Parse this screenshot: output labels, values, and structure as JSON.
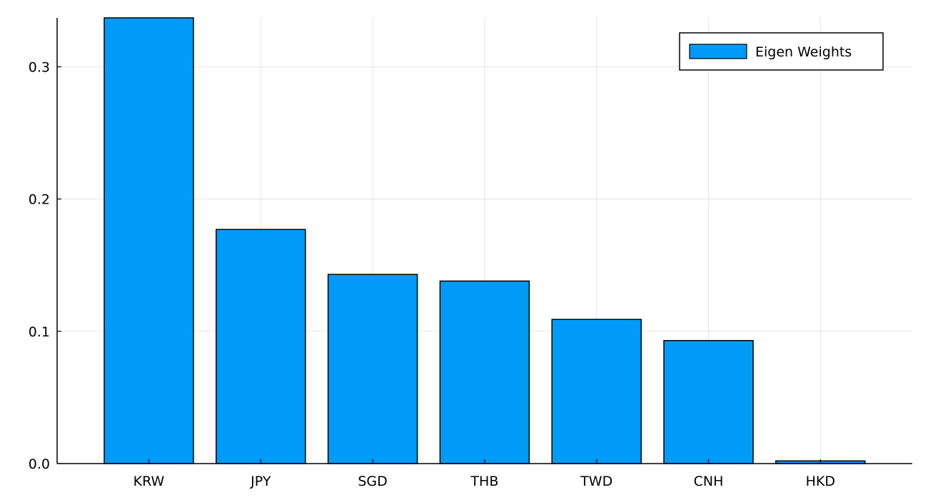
{
  "chart_data": {
    "type": "bar",
    "title": "",
    "xlabel": "",
    "ylabel": "",
    "categories": [
      "KRW",
      "JPY",
      "SGD",
      "THB",
      "TWD",
      "CNH",
      "HKD"
    ],
    "series": [
      {
        "name": "Eigen Weights",
        "color": "#009af9",
        "values": [
          0.337,
          0.177,
          0.143,
          0.138,
          0.109,
          0.093,
          0.002
        ]
      }
    ],
    "ylim": [
      0,
      0.337
    ],
    "yticks": [
      0.0,
      0.1,
      0.2,
      0.3
    ],
    "ytick_labels": [
      "0.0",
      "0.1",
      "0.2",
      "0.3"
    ],
    "grid": true,
    "legend_position": "top-right"
  }
}
